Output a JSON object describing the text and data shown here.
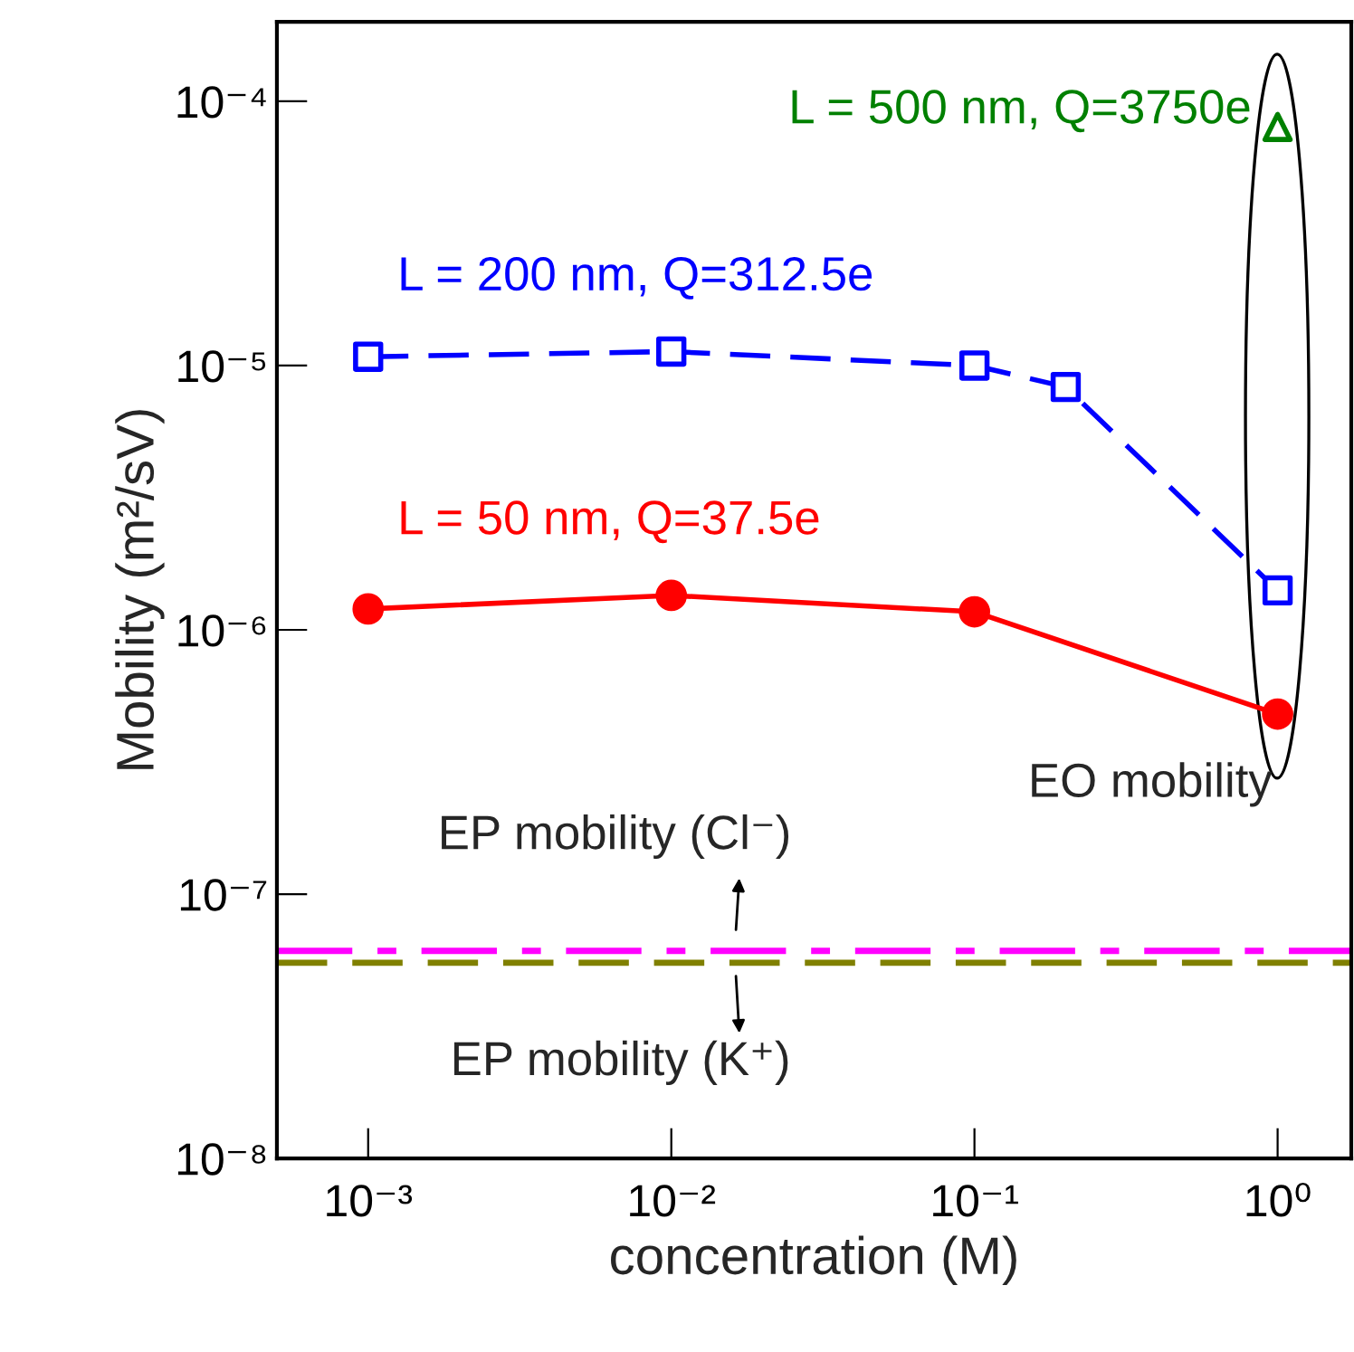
{
  "chart_data": {
    "type": "line",
    "xlabel": "concentration (M)",
    "ylabel": "Mobility (m²/sV)",
    "log": "xy",
    "legend": false,
    "xlim": [
      0.0005,
      1.75
    ],
    "ylim": [
      1e-08,
      0.0002
    ],
    "xticks": [
      {
        "value": 0.001,
        "label": "10⁻³"
      },
      {
        "value": 0.01,
        "label": "10⁻²"
      },
      {
        "value": 0.1,
        "label": "10⁻¹"
      },
      {
        "value": 1,
        "label": "10⁰"
      }
    ],
    "yticks": [
      {
        "value": 1e-08,
        "label": "10⁻⁸"
      },
      {
        "value": 1e-07,
        "label": "10⁻⁷"
      },
      {
        "value": 1e-06,
        "label": "10⁻⁶"
      },
      {
        "value": 1e-05,
        "label": "10⁻⁵"
      },
      {
        "value": 0.0001,
        "label": "10⁻⁴"
      }
    ],
    "series": [
      {
        "name": "L = 50 nm, Q=37.5e",
        "color": "#ff0000",
        "marker": "circle",
        "line_style": "solid",
        "x": [
          0.001,
          0.01,
          0.1,
          1
        ],
        "values": [
          1.2e-06,
          1.35e-06,
          1.17e-06,
          4.8e-07
        ]
      },
      {
        "name": "L = 200 nm, Q=312.5e",
        "color": "#0000ff",
        "marker": "square",
        "line_style": "dashed",
        "x": [
          0.001,
          0.01,
          0.1,
          0.2,
          1
        ],
        "values": [
          1.08e-05,
          1.13e-05,
          1e-05,
          8.3e-06,
          1.41e-06
        ]
      },
      {
        "name": "L = 500 nm, Q=3750e",
        "color": "#008000",
        "type": "scatter",
        "marker": "triangle",
        "x": [
          1
        ],
        "values": [
          8e-05
        ]
      }
    ],
    "ref_lines": [
      {
        "axis": "y",
        "value": 6.1e-08,
        "color": "#ff00ff",
        "line_style": "dashdot"
      },
      {
        "axis": "y",
        "value": 5.5e-08,
        "color": "#808000",
        "line_style": "dashed"
      }
    ],
    "annotations": [
      "EO mobility",
      "EP mobility (Cl⁻)",
      "EP mobility (K⁺)"
    ]
  }
}
